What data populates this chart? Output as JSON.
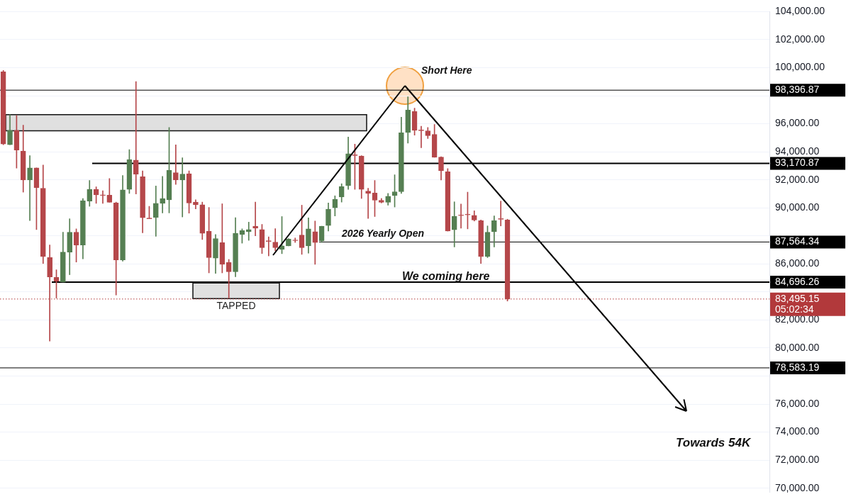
{
  "chart_data": {
    "type": "candlestick",
    "categories": [
      null,
      null,
      null,
      null,
      null,
      null,
      null,
      null,
      null,
      null,
      null,
      null,
      null,
      null,
      null,
      null,
      null,
      null,
      null,
      null,
      null,
      null,
      null,
      null,
      null,
      null,
      null,
      null,
      null,
      null,
      null,
      null,
      null,
      null,
      null,
      null,
      null,
      null,
      null,
      null,
      null,
      null,
      null,
      null,
      null,
      null,
      null,
      null,
      null,
      null,
      null,
      null,
      null,
      null,
      null,
      null,
      null,
      null,
      null,
      null,
      null,
      null,
      null,
      null,
      null,
      null,
      null,
      null,
      null,
      null,
      null,
      null,
      null,
      null,
      null,
      null,
      null,
      null,
      null,
      null,
      null,
      null,
      null,
      null,
      null,
      null,
      null,
      null,
      null,
      null,
      null,
      null,
      null,
      null,
      null,
      null,
      null,
      null,
      null,
      null,
      null,
      null,
      null,
      null,
      null,
      null,
      null,
      null,
      null,
      null,
      null,
      null,
      null,
      null,
      null,
      null
    ],
    "ohlc": [
      [
        99700,
        99800,
        94500,
        94550
      ],
      [
        94500,
        96650,
        94500,
        95530
      ],
      [
        95530,
        96600,
        92830,
        94120
      ],
      [
        94050,
        95900,
        91120,
        91990
      ],
      [
        91990,
        93730,
        89090,
        92850
      ],
      [
        92850,
        92850,
        88450,
        91440
      ],
      [
        91400,
        93050,
        86030,
        86520
      ],
      [
        86450,
        87350,
        80500,
        85070
      ],
      [
        85040,
        85580,
        83560,
        84750
      ],
      [
        84710,
        88260,
        84710,
        86840
      ],
      [
        86840,
        89220,
        85230,
        88260
      ],
      [
        88260,
        88500,
        86130,
        87350
      ],
      [
        87350,
        90670,
        86360,
        90510
      ],
      [
        90480,
        91960,
        90110,
        91320
      ],
      [
        91320,
        91500,
        90320,
        90930
      ],
      [
        90900,
        91220,
        90320,
        90880
      ],
      [
        90900,
        92090,
        90400,
        90400
      ],
      [
        90350,
        90410,
        83780,
        86290
      ],
      [
        86290,
        92310,
        86200,
        91280
      ],
      [
        91320,
        94150,
        91030,
        93440
      ],
      [
        93410,
        99010,
        90990,
        92410
      ],
      [
        92220,
        92640,
        88220,
        89290
      ],
      [
        89250,
        90110,
        89220,
        89220
      ],
      [
        89320,
        91560,
        87970,
        90320
      ],
      [
        90320,
        92250,
        89640,
        90670
      ],
      [
        90570,
        95730,
        89640,
        92670
      ],
      [
        92510,
        94500,
        91670,
        91990
      ],
      [
        91990,
        93570,
        89350,
        92410
      ],
      [
        92440,
        92640,
        89620,
        90350
      ],
      [
        90410,
        90570,
        89930,
        90220
      ],
      [
        90220,
        90410,
        87740,
        88180
      ],
      [
        88320,
        90030,
        85360,
        86450
      ],
      [
        86410,
        88100,
        85330,
        87810
      ],
      [
        87520,
        90290,
        85360,
        85970
      ],
      [
        86100,
        86320,
        83560,
        85440
      ],
      [
        85440,
        89300,
        85090,
        88180
      ],
      [
        88100,
        88500,
        87480,
        88370
      ],
      [
        88300,
        88980,
        87680,
        88450
      ],
      [
        88690,
        90410,
        88010,
        88550
      ],
      [
        88450,
        88820,
        86740,
        87160
      ],
      [
        87610,
        87930,
        86570,
        87600
      ],
      [
        87560,
        88510,
        86940,
        87160
      ],
      [
        87050,
        89380,
        86730,
        87290
      ],
      [
        87290,
        87810,
        87290,
        87770
      ],
      [
        87680,
        87850,
        87530,
        87660
      ],
      [
        88060,
        90190,
        86680,
        87160
      ],
      [
        87290,
        89290,
        86770,
        88500
      ],
      [
        88300,
        89060,
        85970,
        87530
      ],
      [
        87640,
        88690,
        87530,
        88690
      ],
      [
        88740,
        90350,
        88340,
        89900
      ],
      [
        90000,
        90860,
        89420,
        90610
      ],
      [
        90770,
        91720,
        90410,
        91530
      ],
      [
        91590,
        95050,
        91320,
        93860
      ],
      [
        93790,
        94540,
        91320,
        93730
      ],
      [
        93700,
        93730,
        90670,
        91320
      ],
      [
        91190,
        91400,
        89250,
        91030
      ],
      [
        91060,
        91960,
        89380,
        90540
      ],
      [
        90540,
        90670,
        90350,
        90400
      ],
      [
        90400,
        91030,
        90190,
        90830
      ],
      [
        90880,
        92360,
        90060,
        91150
      ],
      [
        91150,
        96470,
        91030,
        95360
      ],
      [
        95370,
        97920,
        94620,
        96980
      ],
      [
        96870,
        97110,
        95180,
        95530
      ],
      [
        95570,
        95820,
        94290,
        95500
      ],
      [
        95500,
        95740,
        94940,
        95150
      ],
      [
        95240,
        95950,
        93600,
        93600
      ],
      [
        93620,
        93650,
        91990,
        92640
      ],
      [
        92570,
        92800,
        88340,
        88340
      ],
      [
        88430,
        90430,
        87210,
        89400
      ],
      [
        89460,
        90270,
        88550,
        89450
      ],
      [
        89510,
        91120,
        88500,
        89500
      ],
      [
        89460,
        89790,
        89060,
        89130
      ],
      [
        89090,
        89140,
        86030,
        86520
      ],
      [
        86520,
        88710,
        86450,
        88260
      ],
      [
        88290,
        89420,
        87210,
        89090
      ],
      [
        89190,
        90480,
        88710,
        89180
      ],
      [
        89140,
        89190,
        83350,
        83495.15
      ],
      null,
      null,
      null,
      null,
      null,
      null,
      null,
      null,
      null,
      null,
      null,
      null,
      null,
      null,
      null,
      null,
      null,
      null,
      null,
      null,
      null,
      null,
      null,
      null,
      null,
      null,
      null,
      null,
      null,
      null,
      null,
      null,
      null,
      null,
      null,
      null,
      null,
      null,
      null
    ],
    "colors": [
      "#b5474a",
      "#557f52",
      "#b5474a",
      "#b5474a",
      "#557f52",
      "#b5474a",
      "#b5474a",
      "#b5474a",
      "#b5474a",
      "#557f52",
      "#557f52",
      "#b5474a",
      "#557f52",
      "#557f52",
      "#b5474a",
      "#b5474a",
      "#b5474a",
      "#b5474a",
      "#557f52",
      "#557f52",
      "#b5474a",
      "#b5474a",
      "#b5474a",
      "#557f52",
      "#557f52",
      "#557f52",
      "#b5474a",
      "#557f52",
      "#b5474a",
      "#b5474a",
      "#b5474a",
      "#b5474a",
      "#557f52",
      "#b5474a",
      "#b5474a",
      "#557f52",
      "#557f52",
      "#557f52",
      "#b5474a",
      "#b5474a",
      "#b5474a",
      "#b5474a",
      "#557f52",
      "#557f52",
      "#b5474a",
      "#b5474a",
      "#557f52",
      "#b5474a",
      "#557f52",
      "#557f52",
      "#557f52",
      "#557f52",
      "#557f52",
      "#b5474a",
      "#b5474a",
      "#b5474a",
      "#b5474a",
      "#b5474a",
      "#557f52",
      "#557f52",
      "#557f52",
      "#557f52",
      "#b5474a",
      "#b5474a",
      "#b5474a",
      "#b5474a",
      "#b5474a",
      "#b5474a",
      "#557f52",
      "#b5474a",
      "#b5474a",
      "#b5474a",
      "#b5474a",
      "#557f52",
      "#557f52",
      "#b5474a",
      "#b5474a",
      null,
      null,
      null,
      null,
      null,
      null,
      null,
      null,
      null,
      null,
      null,
      null,
      null,
      null,
      null,
      null,
      null,
      null,
      null,
      null,
      null,
      null,
      null,
      null,
      null,
      null,
      null,
      null,
      null,
      null,
      null,
      null,
      null,
      null,
      null,
      null,
      null,
      null,
      null
    ],
    "ylim": [
      69700,
      104000
    ],
    "yticks": [
      {
        "value": 70000,
        "label": "70,000.00"
      },
      {
        "value": 72000,
        "label": "72,000.00"
      },
      {
        "value": 74000,
        "label": "74,000.00"
      },
      {
        "value": 76000,
        "label": "76,000.00"
      },
      {
        "value": 78000,
        "label": null
      },
      {
        "value": 80000,
        "label": "80,000.00"
      },
      {
        "value": 82000,
        "label": "82,000.00"
      },
      {
        "value": 84000,
        "label": null
      },
      {
        "value": 86000,
        "label": "86,000.00"
      },
      {
        "value": 88000,
        "label": null
      },
      {
        "value": 90000,
        "label": "90,000.00"
      },
      {
        "value": 92000,
        "label": "92,000.00"
      },
      {
        "value": 94000,
        "label": "94,000.00"
      },
      {
        "value": 96000,
        "label": "96,000.00"
      },
      {
        "value": 98000,
        "label": null
      },
      {
        "value": 100000,
        "label": "100,000.00"
      },
      {
        "value": 102000,
        "label": "102,000.00"
      },
      {
        "value": 104000,
        "label": "104,000.00"
      }
    ],
    "grid": "y",
    "legend": false,
    "ref_lines": [
      {
        "axis": "y",
        "value": 98396.87,
        "label": "98,396.87",
        "color": "#000000"
      },
      {
        "axis": "y",
        "value": 93170.87,
        "label": "93,170.87",
        "color": "#000000"
      },
      {
        "axis": "y",
        "value": 87564.34,
        "label": "87,564.34",
        "color": "#000000"
      },
      {
        "axis": "y",
        "value": 84696.26,
        "label": "84,696.26",
        "color": "#000000"
      },
      {
        "axis": "y",
        "value": 78583.19,
        "label": "78,583.19",
        "color": "#000000"
      },
      {
        "axis": "y",
        "value": 83495.15,
        "label": "83,495.15\n05:02:34",
        "color": "#b2393b",
        "line_style": "dotted"
      }
    ],
    "bands": [
      {
        "axis": "y",
        "from": 95500,
        "to": 96650,
        "color": "#e0e0e0"
      },
      {
        "axis": "y",
        "from": 83530,
        "to": 84640,
        "color": "#e0e0e0",
        "label": "TAPPED"
      }
    ],
    "annotations": [
      "Short Here",
      "2026 Yearly Open",
      "We coming here",
      "Towards 54K"
    ]
  }
}
